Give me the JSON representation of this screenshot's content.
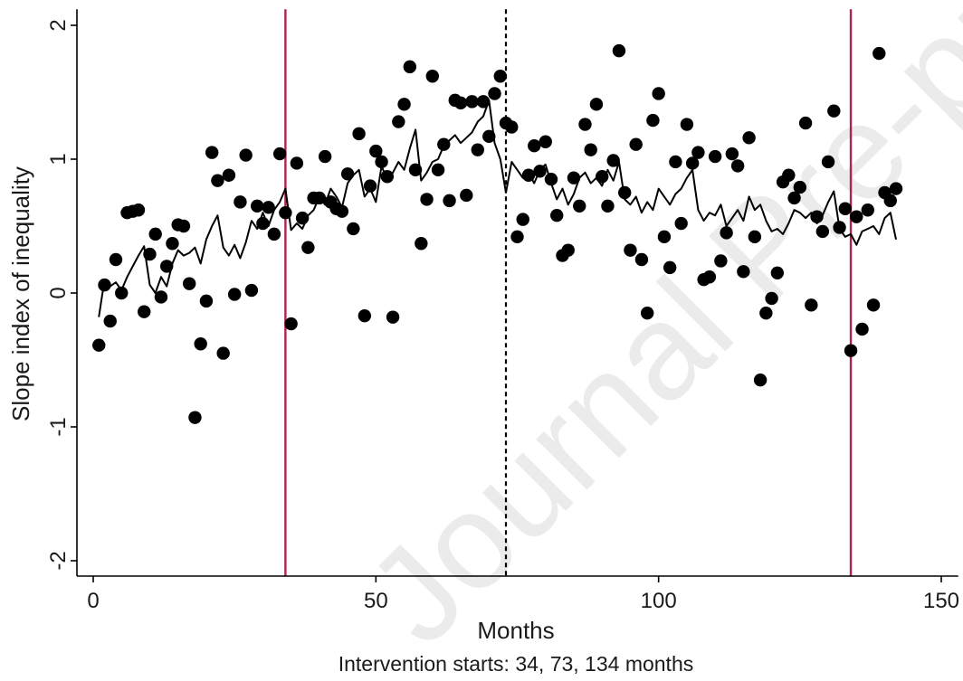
{
  "watermark": "Journal Pre-proof",
  "chart_data": {
    "type": "scatter",
    "xlabel": "Months",
    "ylabel": "Slope index of inequality",
    "note": "Intervention starts: 34, 73, 134 months",
    "xlim": [
      -2,
      153
    ],
    "ylim": [
      -2.15,
      2.12
    ],
    "x_ticks": [
      0,
      50,
      100,
      150
    ],
    "y_ticks": [
      -2,
      -1,
      0,
      1,
      2
    ],
    "intervention_lines": [
      {
        "x": 34,
        "style": "solid",
        "color": "#b0224e"
      },
      {
        "x": 73,
        "style": "dashed",
        "color": "#000000"
      },
      {
        "x": 134,
        "style": "solid",
        "color": "#b0224e"
      }
    ],
    "colors": {
      "points": "#000000",
      "fitted": "#000000",
      "axis": "#000000"
    },
    "series": [
      {
        "kind": "points",
        "x": [
          1,
          2,
          3,
          4,
          5,
          6,
          7,
          8,
          9,
          10,
          11,
          12,
          13,
          14,
          15,
          16,
          17,
          18,
          19,
          20,
          21,
          22,
          23,
          24,
          25,
          26,
          27,
          28,
          29,
          30,
          31,
          32,
          33,
          34,
          35,
          36,
          37,
          38,
          39,
          40,
          41,
          42,
          43,
          44,
          45,
          46,
          47,
          48,
          49,
          50,
          51,
          52,
          53,
          54,
          55,
          56,
          57,
          58,
          59,
          60,
          61,
          62,
          63,
          64,
          65,
          66,
          67,
          68,
          69,
          70,
          71,
          72,
          73,
          74,
          75,
          76,
          77,
          78,
          79,
          80,
          81,
          82,
          83,
          84,
          85,
          86,
          87,
          88,
          89,
          90,
          91,
          92,
          93,
          94,
          95,
          96,
          97,
          98,
          99,
          100,
          101,
          102,
          103,
          104,
          105,
          106,
          107,
          108,
          109,
          110,
          111,
          112,
          113,
          114,
          115,
          116,
          117,
          118,
          119,
          120,
          121,
          122,
          123,
          124,
          125,
          126,
          127,
          128,
          129,
          130,
          131,
          132,
          133,
          134,
          135,
          136,
          137,
          138,
          139,
          140,
          141,
          142
        ],
        "y": [
          -0.39,
          0.06,
          -0.21,
          0.25,
          0.0,
          0.6,
          0.61,
          0.62,
          -0.14,
          0.29,
          0.44,
          -0.03,
          0.2,
          0.37,
          0.51,
          0.5,
          0.07,
          -0.93,
          -0.38,
          -0.06,
          1.05,
          0.84,
          -0.45,
          0.88,
          -0.01,
          0.68,
          1.03,
          0.02,
          0.65,
          0.52,
          0.64,
          0.44,
          1.04,
          0.6,
          -0.23,
          0.97,
          0.56,
          0.34,
          0.71,
          0.71,
          1.02,
          0.68,
          0.63,
          0.61,
          0.89,
          0.48,
          1.19,
          -0.17,
          0.8,
          1.06,
          0.98,
          0.87,
          -0.18,
          1.28,
          1.41,
          1.69,
          0.92,
          0.37,
          0.7,
          1.62,
          0.92,
          1.11,
          0.69,
          1.44,
          1.42,
          0.73,
          1.43,
          1.07,
          1.43,
          1.17,
          1.49,
          1.62,
          1.27,
          1.24,
          0.42,
          0.55,
          0.88,
          1.1,
          0.91,
          1.13,
          0.85,
          0.58,
          0.28,
          0.32,
          0.86,
          0.65,
          1.26,
          1.07,
          1.41,
          0.87,
          0.65,
          0.99,
          1.81,
          0.75,
          0.32,
          1.11,
          0.25,
          -0.15,
          1.29,
          1.49,
          0.42,
          0.19,
          0.98,
          0.52,
          1.26,
          0.97,
          1.05,
          0.1,
          0.12,
          1.02,
          0.24,
          0.45,
          1.04,
          0.95,
          0.16,
          1.16,
          0.42,
          -0.65,
          -0.15,
          -0.04,
          0.15,
          0.83,
          0.88,
          0.71,
          0.79,
          1.27,
          -0.09,
          0.57,
          0.46,
          0.98,
          1.36,
          0.49,
          0.63,
          -0.43,
          0.57,
          -0.27,
          0.62,
          -0.09,
          1.79,
          0.75,
          0.69,
          0.78
        ]
      },
      {
        "kind": "fitted-line",
        "x": [
          1,
          2,
          3,
          4,
          5,
          6,
          7,
          8,
          9,
          10,
          11,
          12,
          13,
          14,
          15,
          16,
          17,
          18,
          19,
          20,
          21,
          22,
          23,
          24,
          25,
          26,
          27,
          28,
          29,
          30,
          31,
          32,
          33,
          34,
          35,
          36,
          37,
          38,
          39,
          40,
          41,
          42,
          43,
          44,
          45,
          46,
          47,
          48,
          49,
          50,
          51,
          52,
          53,
          54,
          55,
          56,
          57,
          58,
          59,
          60,
          61,
          62,
          63,
          64,
          65,
          66,
          67,
          68,
          69,
          70,
          71,
          72,
          73,
          74,
          75,
          76,
          77,
          78,
          79,
          80,
          81,
          82,
          83,
          84,
          85,
          86,
          87,
          88,
          89,
          90,
          91,
          92,
          93,
          94,
          95,
          96,
          97,
          98,
          99,
          100,
          101,
          102,
          103,
          104,
          105,
          106,
          107,
          108,
          109,
          110,
          111,
          112,
          113,
          114,
          115,
          116,
          117,
          118,
          119,
          120,
          121,
          122,
          123,
          124,
          125,
          126,
          127,
          128,
          129,
          130,
          131,
          132,
          133,
          134,
          135,
          136,
          137,
          138,
          139,
          140,
          141,
          142
        ],
        "y": [
          -0.18,
          0.1,
          0.05,
          0.08,
          0.02,
          0.12,
          0.2,
          0.28,
          0.35,
          0.06,
          0.0,
          0.12,
          0.05,
          0.22,
          0.32,
          0.28,
          0.3,
          0.34,
          0.22,
          0.4,
          0.5,
          0.58,
          0.34,
          0.28,
          0.36,
          0.26,
          0.38,
          0.54,
          0.48,
          0.6,
          0.5,
          0.62,
          0.68,
          0.78,
          0.47,
          0.52,
          0.48,
          0.58,
          0.62,
          0.72,
          0.66,
          0.78,
          0.72,
          0.64,
          0.82,
          0.88,
          0.92,
          0.72,
          0.78,
          0.68,
          0.95,
          0.84,
          0.9,
          0.98,
          0.92,
          1.08,
          1.22,
          0.84,
          0.9,
          0.98,
          1.0,
          1.1,
          1.14,
          1.18,
          1.12,
          1.16,
          1.2,
          1.28,
          1.32,
          1.44,
          1.12,
          1.0,
          0.75,
          0.98,
          0.92,
          0.86,
          0.9,
          0.82,
          0.92,
          0.96,
          0.82,
          0.7,
          0.78,
          0.66,
          0.74,
          0.86,
          0.9,
          0.82,
          0.86,
          0.8,
          0.92,
          0.84,
          0.98,
          0.7,
          0.66,
          0.72,
          0.6,
          0.68,
          0.62,
          0.78,
          0.72,
          0.66,
          0.74,
          0.78,
          0.86,
          0.92,
          0.62,
          0.54,
          0.6,
          0.58,
          0.66,
          0.5,
          0.56,
          0.62,
          0.54,
          0.72,
          0.62,
          0.66,
          0.54,
          0.46,
          0.48,
          0.44,
          0.52,
          0.62,
          0.6,
          0.56,
          0.6,
          0.52,
          0.58,
          0.68,
          0.76,
          0.48,
          0.42,
          0.44,
          0.36,
          0.46,
          0.48,
          0.5,
          0.44,
          0.56,
          0.6,
          0.4
        ]
      }
    ]
  }
}
